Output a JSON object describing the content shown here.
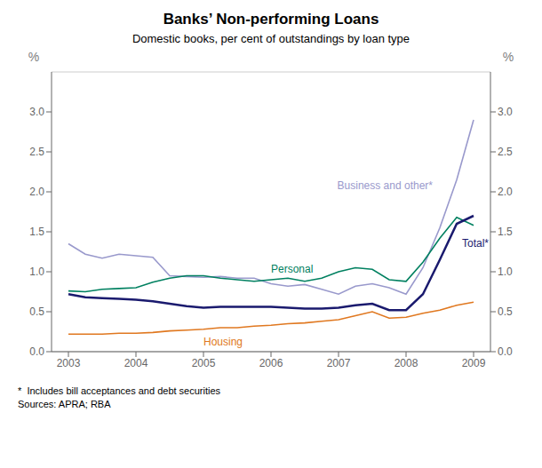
{
  "chart_data": {
    "type": "line",
    "title": "Banks’ Non-performing Loans",
    "subtitle": "Domestic books, per cent of outstandings by loan type",
    "footnotes": [
      "*  Includes bill acceptances and debt securities",
      "Sources: APRA; RBA"
    ],
    "y_label": "%",
    "y2_label": "%",
    "x": [
      2003.0,
      2003.25,
      2003.5,
      2003.75,
      2004.0,
      2004.25,
      2004.5,
      2004.75,
      2005.0,
      2005.25,
      2005.5,
      2005.75,
      2006.0,
      2006.25,
      2006.5,
      2006.75,
      2007.0,
      2007.25,
      2007.5,
      2007.75,
      2008.0,
      2008.25,
      2008.5,
      2008.75,
      2009.0
    ],
    "xlim": [
      2002.75,
      2009.25
    ],
    "xticks": [
      2003,
      2004,
      2005,
      2006,
      2007,
      2008,
      2009
    ],
    "ylim": [
      0.0,
      3.5
    ],
    "yticks": [
      {
        "value": 0.0,
        "label": "0.0"
      },
      0.5,
      {
        "value": 1.0,
        "label": "1.0"
      },
      1.5,
      {
        "value": 2.0,
        "label": "2.0"
      },
      2.5,
      {
        "value": 3.0,
        "label": "3.0"
      }
    ],
    "y2lim": [
      0.0,
      3.5
    ],
    "y2ticks": [
      {
        "value": 0.0,
        "label": "0.0"
      },
      0.5,
      {
        "value": 1.0,
        "label": "1.0"
      },
      1.5,
      {
        "value": 2.0,
        "label": "2.0"
      },
      2.5,
      {
        "value": 3.0,
        "label": "3.0"
      }
    ],
    "grid": true,
    "series": [
      {
        "name": "Business and other*",
        "color": "#9999cc",
        "values": [
          1.35,
          1.22,
          1.17,
          1.22,
          1.2,
          1.18,
          0.95,
          0.94,
          0.93,
          0.94,
          0.92,
          0.92,
          0.85,
          0.82,
          0.84,
          0.78,
          0.72,
          0.82,
          0.85,
          0.8,
          0.72,
          1.05,
          1.55,
          2.15,
          2.9
        ]
      },
      {
        "name": "Personal",
        "color": "#008060",
        "values": [
          0.76,
          0.75,
          0.78,
          0.79,
          0.8,
          0.87,
          0.92,
          0.95,
          0.95,
          0.92,
          0.9,
          0.88,
          0.9,
          0.92,
          0.88,
          0.92,
          1.0,
          1.05,
          1.03,
          0.9,
          0.88,
          1.12,
          1.42,
          1.68,
          1.58
        ]
      },
      {
        "name": "Total*",
        "color": "#1a1a6e",
        "values": [
          0.72,
          0.68,
          0.67,
          0.66,
          0.65,
          0.63,
          0.6,
          0.57,
          0.55,
          0.56,
          0.56,
          0.56,
          0.56,
          0.55,
          0.54,
          0.54,
          0.55,
          0.58,
          0.6,
          0.52,
          0.52,
          0.72,
          1.15,
          1.6,
          1.7
        ]
      },
      {
        "name": "Housing",
        "color": "#e07820",
        "values": [
          0.22,
          0.22,
          0.22,
          0.23,
          0.23,
          0.24,
          0.26,
          0.27,
          0.28,
          0.3,
          0.3,
          0.32,
          0.33,
          0.35,
          0.36,
          0.38,
          0.4,
          0.45,
          0.5,
          0.42,
          0.43,
          0.48,
          0.52,
          0.58,
          0.62
        ]
      }
    ]
  }
}
